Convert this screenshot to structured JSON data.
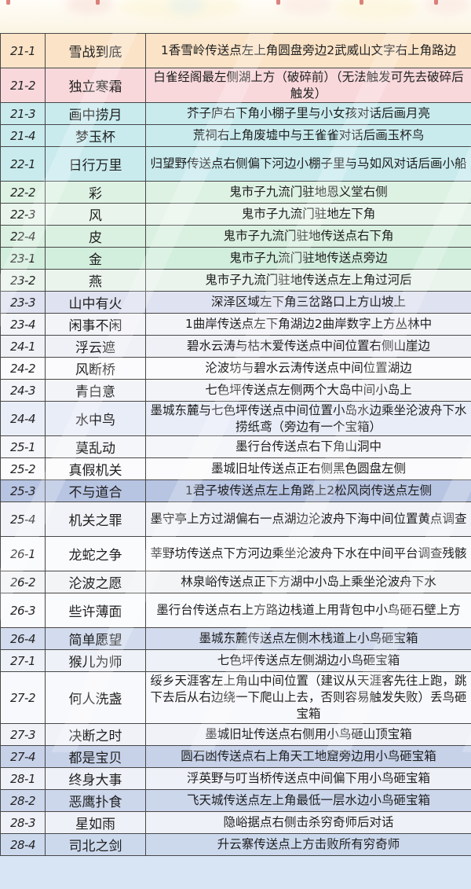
{
  "page": {
    "background_top": "#fdf8ec",
    "background_bottom": "#d8e5f5",
    "table_border_color": "#474747",
    "text_color": "#1f1f1f",
    "highlight_row_color": "#b7c4e2"
  },
  "table": {
    "rows": [
      {
        "id": "21-1",
        "name": "雪战到底",
        "desc": "1香雪岭传送点左上角圆盘旁边2武威山文字右上角路边",
        "bg": "#fbe3c7",
        "lines": 2
      },
      {
        "id": "21-2",
        "name": "独立寒霜",
        "desc": "白雀经阁最左侧湖上方（破碎前）（无法触发可先去破碎后触发）",
        "bg": "#f9d8db",
        "lines": 2
      },
      {
        "id": "21-3",
        "name": "画中捞月",
        "desc": "芥子庐右下角小棚子里与小女孩对话后画月亮",
        "bg": "#c9ebee",
        "lines": 1
      },
      {
        "id": "21-4",
        "name": "梦玉杯",
        "desc": "荒祠右上角废墟中与王雀雀对话后画玉杯鸟",
        "bg": "#c9ebee",
        "lines": 1
      },
      {
        "id": "22-1",
        "name": "日行万里",
        "desc": "归望野传送点右侧偏下河边小棚子里与马如风对话后画小船",
        "bg": "#c9ebee",
        "lines": 2
      },
      {
        "id": "22-2",
        "name": "彩",
        "desc": "鬼市子九流门驻地恩义堂右侧",
        "bg": "#def2e4",
        "lines": 1
      },
      {
        "id": "22-3",
        "name": "风",
        "desc": "鬼市子九流门驻地左下角",
        "bg": "#e9f5ec",
        "lines": 1
      },
      {
        "id": "22-4",
        "name": "皮",
        "desc": "鬼市子九流门驻地传送点右下角",
        "bg": "#daf0e0",
        "lines": 1
      },
      {
        "id": "23-1",
        "name": "金",
        "desc": "鬼市子九流门驻地传送点旁边",
        "bg": "#d2eedd",
        "lines": 1
      },
      {
        "id": "23-2",
        "name": "燕",
        "desc": "鬼市子九流门驻地传送点左上角过河后",
        "bg": "#eaf4ed",
        "lines": 1
      },
      {
        "id": "23-3",
        "name": "山中有火",
        "desc": "深泽区域左下角三岔路口上方山坡上",
        "bg": "#dfe2f0",
        "lines": 1
      },
      {
        "id": "23-4",
        "name": "闲事不闲",
        "desc": "1曲岸传送点左下角湖边2曲岸数字上方丛林中",
        "bg": "#f3f4f8",
        "lines": 1
      },
      {
        "id": "24-1",
        "name": "浮云遮",
        "desc": "碧水云涛与枯木爱传送点中间位置右侧山崖边",
        "bg": "#f0f1f6",
        "lines": 1
      },
      {
        "id": "24-2",
        "name": "风断桥",
        "desc": "沦波坊与碧水云涛传送点中间位置湖边",
        "bg": "#fbfbfd",
        "lines": 1
      },
      {
        "id": "24-3",
        "name": "青白意",
        "desc": "七色坪传送点左侧两个大岛中间小岛上",
        "bg": "#f3f4f8",
        "lines": 1
      },
      {
        "id": "24-4",
        "name": "水中鸟",
        "desc": "墨城东麓与七色坪传送点中间位置小岛水边乘坐沦波舟下水捞纸鸢（旁边有一个宝箱）",
        "bg": "#e9edf7",
        "lines": 2
      },
      {
        "id": "25-1",
        "name": "莫乱动",
        "desc": "墨行台传送点右下角山洞中",
        "bg": "#f5f6f9",
        "lines": 1
      },
      {
        "id": "25-2",
        "name": "真假机关",
        "desc": "墨城旧址传送点正右侧黑色圆盘左侧",
        "bg": "#fbfbfd",
        "lines": 1
      },
      {
        "id": "25-3",
        "name": "不与道合",
        "desc": "1君子坡传送点左上角路上2松风岗传送点左侧",
        "bg": "#b7c4e2",
        "lines": 1
      },
      {
        "id": "25-4",
        "name": "机关之罪",
        "desc": "墨守亭上方过湖偏右一点湖边沦波舟下海中间位置黄点调查",
        "bg": "#f2f3f8",
        "lines": 2
      },
      {
        "id": "26-1",
        "name": "龙蛇之争",
        "desc": "莘野坊传送点下方河边乘坐沦波舟下水在中间平台调查残骸",
        "bg": "#fafbfd",
        "lines": 2
      },
      {
        "id": "26-2",
        "name": "沦波之愿",
        "desc": "林泉峪传送点正下方湖中小岛上乘坐沦波舟下水",
        "bg": "#f2f4f6",
        "lines": 1
      },
      {
        "id": "26-3",
        "name": "些许薄面",
        "desc": "墨行台传送点右上方路边栈道上用背包中小鸟砸石壁上方",
        "bg": "#fafbfd",
        "lines": 2
      },
      {
        "id": "26-4",
        "name": "简单愿望",
        "desc": "墨城东麓传送点左侧木栈道上小鸟砸宝箱",
        "bg": "#d3dcee",
        "lines": 1
      },
      {
        "id": "27-1",
        "name": "猴儿为师",
        "desc": "七色坪传送点左侧湖边小鸟砸宝箱",
        "bg": "#eef1f7",
        "lines": 1
      },
      {
        "id": "27-2",
        "name": "何人洗盏",
        "desc": "绥乡天涯客左上角山中间位置（建议从天涯客先往上跑，跳下去后从右边绕一下爬山上去，否则容易触发失败）丢鸟砸宝箱",
        "bg": "#f8f9fc",
        "lines": 3
      },
      {
        "id": "27-3",
        "name": "决断之时",
        "desc": "墨城旧址传送点右侧用小鸟砸山顶宝箱",
        "bg": "#f0f2f8",
        "lines": 1
      },
      {
        "id": "27-4",
        "name": "都是宝贝",
        "desc": "圆石凼传送点右上角天工地窟旁边用小鸟砸宝箱",
        "bg": "#c7d2e9",
        "lines": 1
      },
      {
        "id": "28-1",
        "name": "终身大事",
        "desc": "浮英野与叮当桥传送点中间偏下用小鸟砸宝箱",
        "bg": "#eff1f8",
        "lines": 1
      },
      {
        "id": "28-2",
        "name": "恶鹰扑食",
        "desc": "飞天城传送点左上角最低一层水边小鸟砸宝箱",
        "bg": "#ccd7ec",
        "lines": 1
      },
      {
        "id": "28-3",
        "name": "星如雨",
        "desc": "隐峪据点右侧击杀穷奇师后对话",
        "bg": "#eff1f8",
        "lines": 1
      },
      {
        "id": "28-4",
        "name": "司北之剑",
        "desc": "升云寨传送点上方击败所有穷奇师",
        "bg": "#ccd9ed",
        "lines": 1
      }
    ]
  }
}
